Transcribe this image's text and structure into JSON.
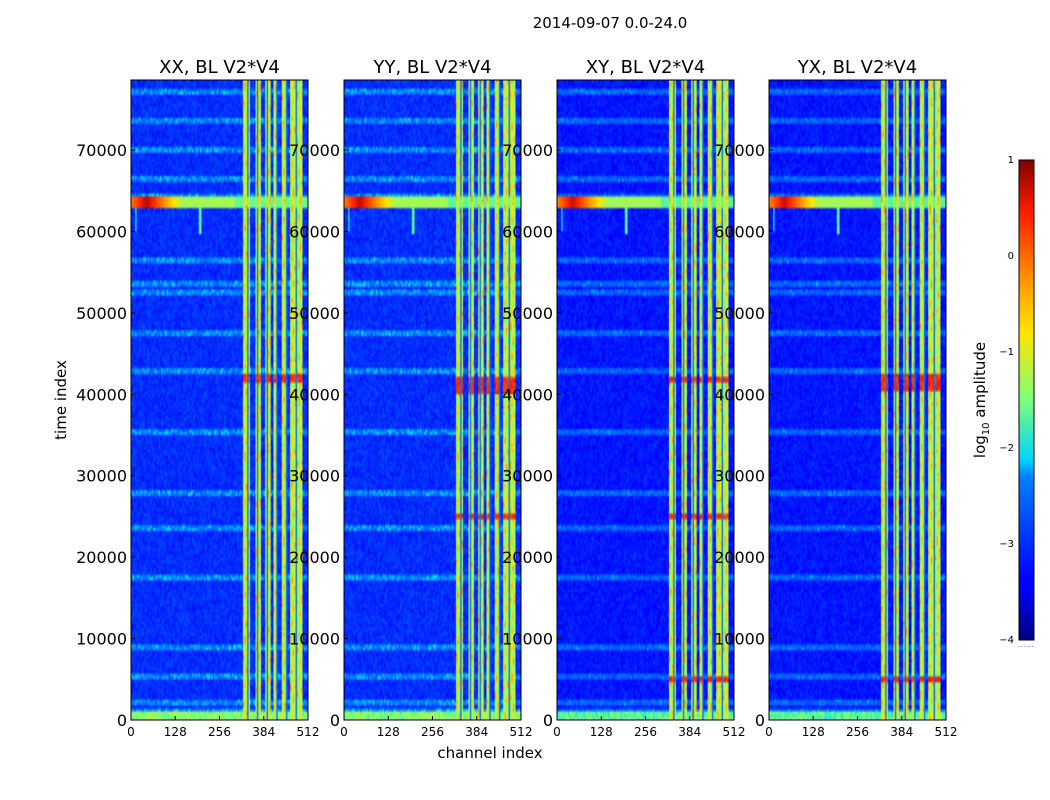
{
  "chart_data": {
    "type": "heatmap",
    "suptitle": "2014-09-07 0.0-24.0",
    "xlabel": "channel index",
    "ylabel": "time index",
    "x_range": [
      0,
      512
    ],
    "y_range": [
      0,
      78600
    ],
    "x_ticks": [
      0,
      128,
      256,
      384,
      512
    ],
    "y_ticks": [
      0,
      10000,
      20000,
      30000,
      40000,
      50000,
      60000,
      70000
    ],
    "colormap": "jet",
    "colorbar": {
      "label_prefix": "log",
      "label_sub": "10",
      "label_suffix": " amplitude",
      "range": [
        -4,
        1
      ],
      "ticks": [
        1,
        0,
        -1,
        -2,
        -3,
        -4
      ],
      "tick_labels": [
        "1",
        "0",
        "−1",
        "−2",
        "−3",
        "−4"
      ],
      "extend_mark": "......"
    },
    "panels": [
      {
        "title": "XX, BL V2*V4",
        "flare_strength": 1.0,
        "bright_rows": [
          42000
        ],
        "bright_cols": [],
        "background": -3.0
      },
      {
        "title": "YY, BL V2*V4",
        "flare_strength": 0.95,
        "bright_rows": [
          41500,
          40500,
          25000
        ],
        "bright_cols": [],
        "background": -3.0
      },
      {
        "title": "XY, BL V2*V4",
        "flare_strength": 0.9,
        "bright_rows": [
          41800,
          25000,
          5000
        ],
        "bright_cols": [],
        "background": -3.2
      },
      {
        "title": "YX, BL V2*V4",
        "flare_strength": 0.9,
        "bright_rows": [
          42000,
          41000,
          5000
        ],
        "bright_cols": [],
        "background": -3.2
      }
    ],
    "features": {
      "rfi_columns_channels": [
        [
          325,
          345
        ],
        [
          360,
          375
        ],
        [
          390,
          402
        ],
        [
          412,
          425
        ],
        [
          438,
          450
        ],
        [
          460,
          478
        ],
        [
          482,
          495
        ]
      ],
      "horizontal_lines_time": [
        500,
        1200,
        2000,
        5200,
        9000,
        17500,
        23500,
        28000,
        35500,
        43000,
        47500,
        52500,
        53500,
        56500,
        63500,
        64200,
        66500,
        70000,
        73500,
        77000
      ],
      "flare_time": 63500,
      "flare_channels": [
        45,
        200
      ]
    }
  }
}
